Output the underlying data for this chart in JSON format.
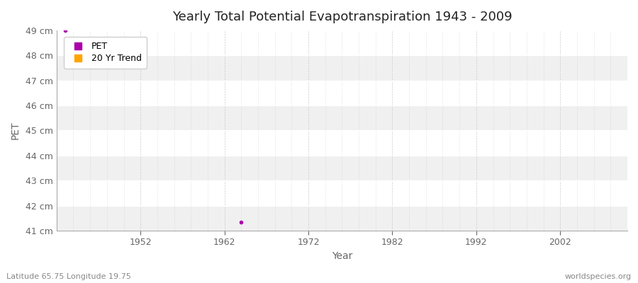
{
  "title": "Yearly Total Potential Evapotranspiration 1943 - 2009",
  "xlabel": "Year",
  "ylabel": "PET",
  "subtitle_left": "Latitude 65.75 Longitude 19.75",
  "subtitle_right": "worldspecies.org",
  "ylim": [
    41,
    49
  ],
  "xlim": [
    1942,
    2010
  ],
  "yticks": [
    41,
    42,
    43,
    44,
    45,
    46,
    47,
    48,
    49
  ],
  "ytick_labels": [
    "41 cm",
    "42 cm",
    "43 cm",
    "44 cm",
    "45 cm",
    "46 cm",
    "47 cm",
    "48 cm",
    "49 cm"
  ],
  "xticks": [
    1952,
    1962,
    1972,
    1982,
    1992,
    2002
  ],
  "pet_point_x": 1943,
  "pet_point_y": 49.0,
  "pet_point2_x": 1964,
  "pet_point2_y": 41.35,
  "pet_color": "#aa00aa",
  "trend_color": "#ffa500",
  "background_color": "#ffffff",
  "plot_bg_color": "#ffffff",
  "band_color_even": "#f0f0f0",
  "band_color_odd": "#ffffff",
  "grid_h_color": "#ffffff",
  "grid_v_color": "#cccccc",
  "legend_items": [
    "PET",
    "20 Yr Trend"
  ],
  "spine_color": "#aaaaaa",
  "tick_color": "#666666",
  "title_color": "#222222",
  "label_color": "#666666"
}
